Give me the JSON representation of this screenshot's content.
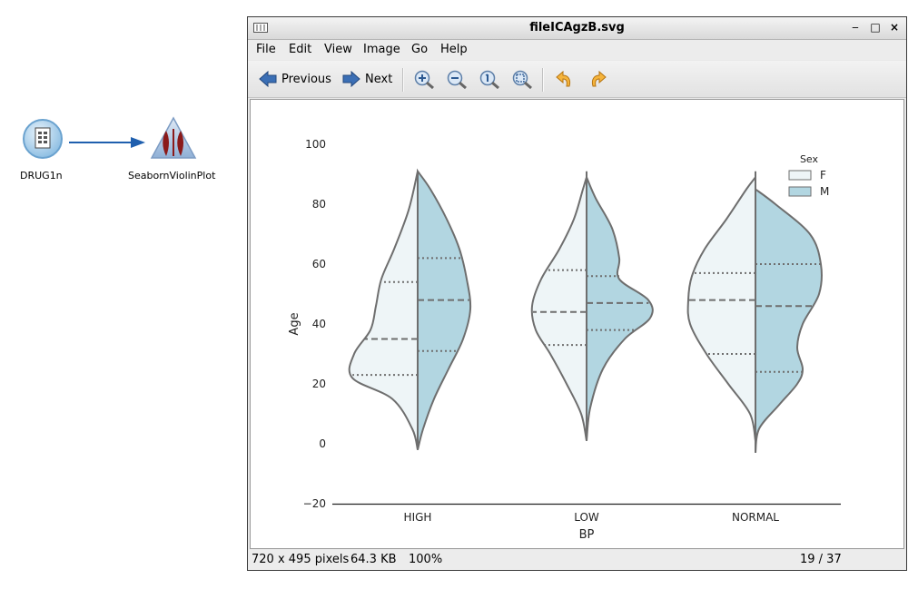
{
  "canvas": {
    "nodes": [
      {
        "label": "DRUG1n",
        "icon": "variable-file-icon"
      },
      {
        "label": "SeabornViolinPlot",
        "icon": "violin-plot-icon"
      }
    ]
  },
  "window": {
    "title": "fileICAgzB.svg",
    "controls": {
      "minimize": "‒",
      "maximize": "□",
      "close": "×"
    },
    "menu": [
      "File",
      "Edit",
      "View",
      "Image",
      "Go",
      "Help"
    ],
    "toolbar": {
      "previous_label": "Previous",
      "next_label": "Next",
      "icons": [
        "zoom-in-icon",
        "zoom-out-icon",
        "zoom-normal-icon",
        "zoom-fit-icon",
        "rotate-left-icon",
        "rotate-right-icon"
      ]
    },
    "status": {
      "dimensions": "720 x 495 pixels",
      "size": "64.3 KB",
      "zoom": "100%",
      "position": "19 / 37"
    }
  },
  "chart_data": {
    "type": "violin",
    "xlabel": "BP",
    "ylabel": "Age",
    "categories": [
      "HIGH",
      "LOW",
      "NORMAL"
    ],
    "yticks": [
      "100",
      "80",
      "60",
      "40",
      "20",
      "0",
      "−20"
    ],
    "ylim": [
      -20,
      100
    ],
    "legend": {
      "title": "Sex",
      "position": "top-right",
      "entries": [
        "F",
        "M"
      ]
    },
    "colors": {
      "F": "#eef5f7",
      "M": "#b2d6e1",
      "edge": "#6e6e6e"
    },
    "series": [
      {
        "name": "F",
        "quartiles": [
          [
            23,
            35,
            54
          ],
          [
            33,
            44,
            58
          ],
          [
            30,
            48,
            57
          ]
        ]
      },
      {
        "name": "M",
        "quartiles": [
          [
            31,
            48,
            62
          ],
          [
            38,
            47,
            56
          ],
          [
            24,
            46,
            60
          ]
        ]
      }
    ],
    "extents": {
      "F": [
        [
          -2,
          91
        ],
        [
          1,
          89
        ],
        [
          1,
          89
        ]
      ],
      "M": [
        [
          -2,
          91
        ],
        [
          1,
          89
        ],
        [
          -3,
          85
        ]
      ]
    }
  }
}
